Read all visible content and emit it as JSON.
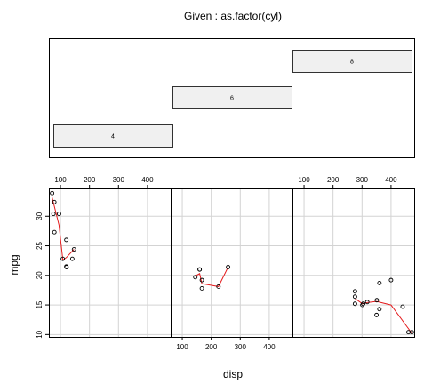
{
  "chart_data": {
    "type": "scatter",
    "title": "Given : as.factor(cyl)",
    "xlabel": "disp",
    "ylabel": "mpg",
    "xlim": [
      60,
      480
    ],
    "ylim": [
      9.6,
      34.7
    ],
    "x_ticks": [
      100,
      200,
      300,
      400
    ],
    "y_ticks": [
      10,
      15,
      20,
      25,
      30
    ],
    "given_levels": [
      "4",
      "6",
      "8"
    ],
    "grid": true,
    "smoother_color": "#e41a1c",
    "panels": [
      {
        "level": "4",
        "points": [
          [
            108,
            22.8
          ],
          [
            146.7,
            24.4
          ],
          [
            140.8,
            22.8
          ],
          [
            78.7,
            32.4
          ],
          [
            75.7,
            30.4
          ],
          [
            71.1,
            33.9
          ],
          [
            120.1,
            21.5
          ],
          [
            79,
            27.3
          ],
          [
            120.3,
            26
          ],
          [
            95.1,
            30.4
          ],
          [
            121,
            21.4
          ]
        ],
        "smooth": [
          [
            71.1,
            33.2
          ],
          [
            95.1,
            28.5
          ],
          [
            108,
            22.6
          ],
          [
            120.2,
            23.0
          ],
          [
            146.7,
            24.4
          ]
        ]
      },
      {
        "level": "6",
        "points": [
          [
            160,
            21
          ],
          [
            160,
            21
          ],
          [
            258,
            21.4
          ],
          [
            225,
            18.1
          ],
          [
            167.6,
            19.2
          ],
          [
            167.6,
            17.8
          ],
          [
            145,
            19.7
          ]
        ],
        "smooth": [
          [
            145,
            19.9
          ],
          [
            160,
            20.3
          ],
          [
            167.6,
            18.6
          ],
          [
            225,
            18.1
          ],
          [
            258,
            21.4
          ]
        ]
      },
      {
        "level": "8",
        "points": [
          [
            360,
            18.7
          ],
          [
            360,
            14.3
          ],
          [
            275.8,
            16.4
          ],
          [
            275.8,
            17.3
          ],
          [
            275.8,
            15.2
          ],
          [
            472,
            10.4
          ],
          [
            460,
            10.4
          ],
          [
            440,
            14.7
          ],
          [
            318,
            15.5
          ],
          [
            304,
            15.2
          ],
          [
            350,
            13.3
          ],
          [
            400,
            19.2
          ],
          [
            351,
            15.8
          ],
          [
            301,
            15
          ]
        ],
        "smooth": [
          [
            275.8,
            16.1
          ],
          [
            301,
            15.2
          ],
          [
            318,
            15.4
          ],
          [
            350,
            15.6
          ],
          [
            400,
            15.0
          ],
          [
            472,
            10.2
          ]
        ]
      }
    ]
  }
}
